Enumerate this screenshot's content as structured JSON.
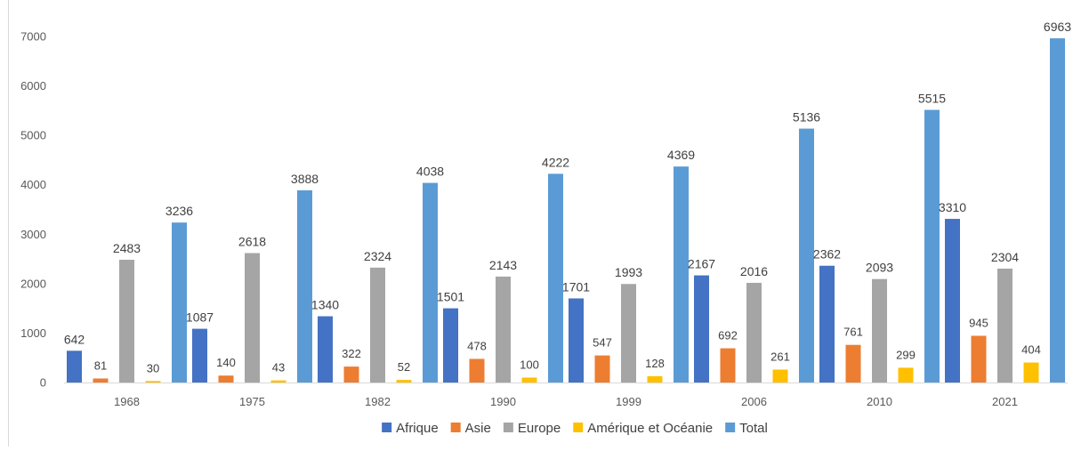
{
  "chart_data": {
    "type": "bar",
    "title": "",
    "xlabel": "",
    "ylabel": "",
    "ylim": [
      0,
      7000
    ],
    "yticks": [
      0,
      1000,
      2000,
      3000,
      4000,
      5000,
      6000,
      7000
    ],
    "grid": false,
    "legend_position": "bottom",
    "categories": [
      "1968",
      "1975",
      "1982",
      "1990",
      "1999",
      "2006",
      "2010",
      "2021"
    ],
    "series": [
      {
        "name": "Afrique",
        "color": "#4472c4",
        "values": [
          642,
          1087,
          1340,
          1501,
          1701,
          2167,
          2362,
          3310
        ]
      },
      {
        "name": "Asie",
        "color": "#ed7d31",
        "values": [
          81,
          140,
          322,
          478,
          547,
          692,
          761,
          945
        ]
      },
      {
        "name": "Europe",
        "color": "#a5a5a5",
        "values": [
          2483,
          2618,
          2324,
          2143,
          1993,
          2016,
          2093,
          2304
        ]
      },
      {
        "name": "Amérique et Océanie",
        "color": "#ffc000",
        "values": [
          30,
          43,
          52,
          100,
          128,
          261,
          299,
          404
        ]
      },
      {
        "name": "Total",
        "color": "#5b9bd5",
        "values": [
          3236,
          3888,
          4038,
          4222,
          4369,
          5136,
          5515,
          6963
        ]
      }
    ]
  }
}
